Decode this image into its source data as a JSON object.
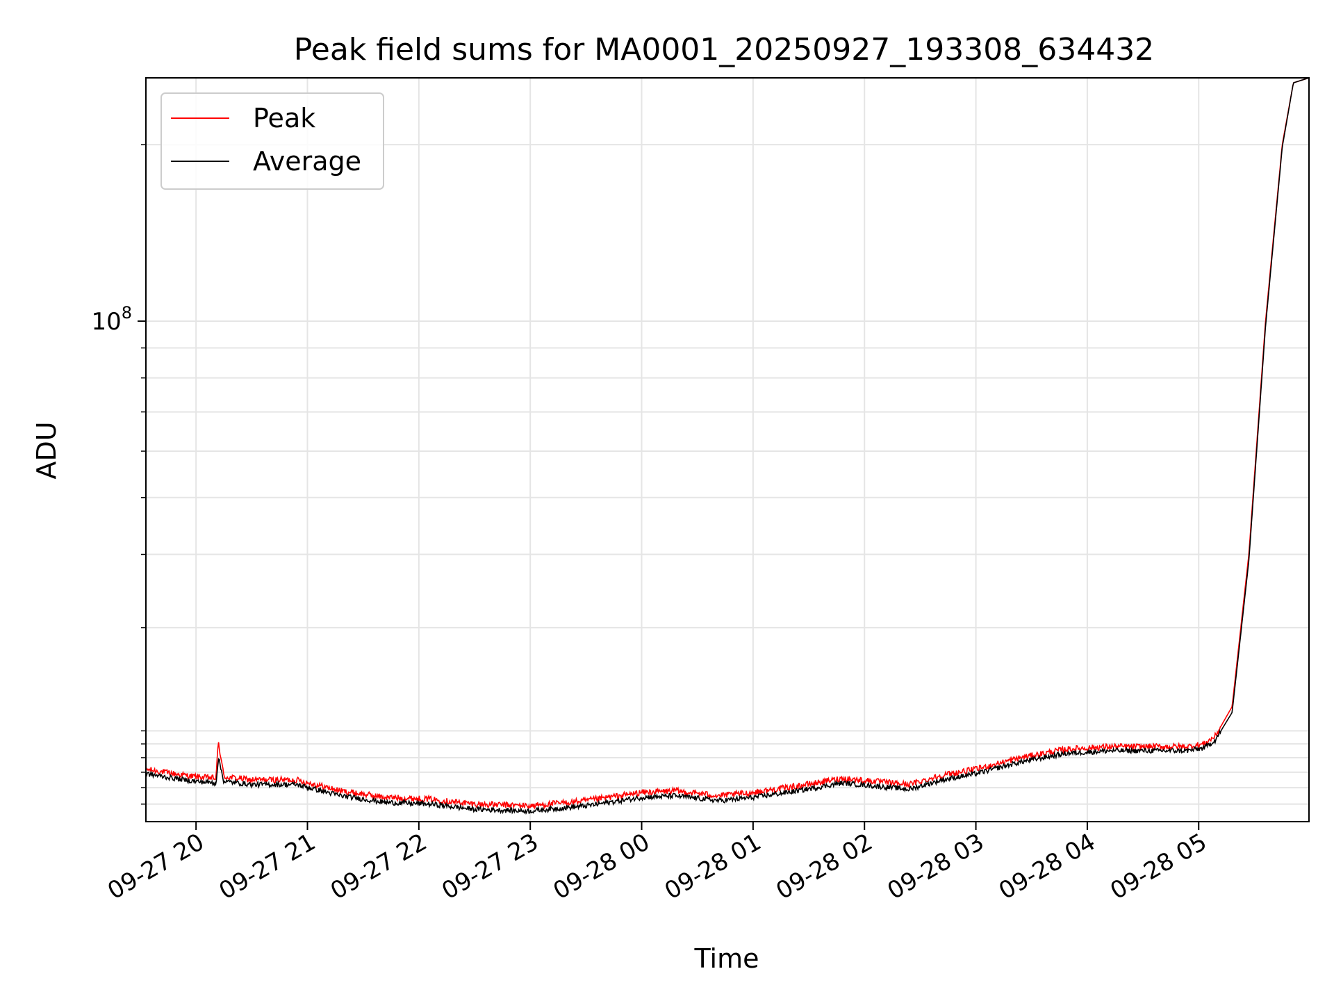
{
  "chart_data": {
    "type": "line",
    "title": "Peak field sums for MA0001_20250927_193308_634432",
    "xlabel": "Time",
    "ylabel": "ADU",
    "yscale": "log",
    "ylim": [
      14000000,
      260000000
    ],
    "ytick_major": {
      "value": 100000000,
      "base": "10",
      "exp": "8"
    },
    "ytick_minor": [
      15000000,
      16000000,
      17000000,
      18000000,
      19000000,
      20000000,
      30000000,
      40000000,
      50000000,
      60000000,
      70000000,
      80000000,
      90000000,
      200000000
    ],
    "xlim_hours": [
      -0.45,
      9.99
    ],
    "x_ticks": [
      {
        "h": 0,
        "label": "09-27 20"
      },
      {
        "h": 1,
        "label": "09-27 21"
      },
      {
        "h": 2,
        "label": "09-27 22"
      },
      {
        "h": 3,
        "label": "09-27 23"
      },
      {
        "h": 4,
        "label": "09-28 00"
      },
      {
        "h": 5,
        "label": "09-28 01"
      },
      {
        "h": 6,
        "label": "09-28 02"
      },
      {
        "h": 7,
        "label": "09-28 03"
      },
      {
        "h": 8,
        "label": "09-28 04"
      },
      {
        "h": 9,
        "label": "09-28 05"
      }
    ],
    "grid": true,
    "legend_position": "top-left",
    "series": [
      {
        "name": "Peak",
        "color": "#ff0000",
        "x_hours": [
          -0.45,
          -0.2,
          0.0,
          0.18,
          0.2,
          0.25,
          0.5,
          0.9,
          1.3,
          1.7,
          2.1,
          2.5,
          3.0,
          3.5,
          4.0,
          4.3,
          4.7,
          5.0,
          5.4,
          5.8,
          6.1,
          6.4,
          6.7,
          7.0,
          7.4,
          7.8,
          8.2,
          8.6,
          8.9,
          9.05,
          9.15,
          9.3,
          9.45,
          9.6,
          9.75,
          9.85,
          9.99
        ],
        "y": [
          17200000,
          16900000,
          16700000,
          16600000,
          19200000,
          16700000,
          16500000,
          16500000,
          15800000,
          15400000,
          15300000,
          15000000,
          14900000,
          15200000,
          15700000,
          15800000,
          15500000,
          15700000,
          16100000,
          16600000,
          16400000,
          16200000,
          16800000,
          17200000,
          18000000,
          18600000,
          18800000,
          18800000,
          18800000,
          19000000,
          19600000,
          22000000,
          40000000,
          100000000,
          200000000,
          255000000,
          260000000
        ]
      },
      {
        "name": "Average",
        "color": "#000000",
        "x_hours": [
          -0.45,
          -0.2,
          0.0,
          0.18,
          0.2,
          0.25,
          0.5,
          0.9,
          1.3,
          1.7,
          2.1,
          2.5,
          3.0,
          3.5,
          4.0,
          4.3,
          4.7,
          5.0,
          5.4,
          5.8,
          6.1,
          6.4,
          6.7,
          7.0,
          7.4,
          7.8,
          8.2,
          8.6,
          8.9,
          9.05,
          9.15,
          9.3,
          9.45,
          9.6,
          9.75,
          9.85,
          9.99
        ],
        "y": [
          16900000,
          16600000,
          16400000,
          16300000,
          18000000,
          16400000,
          16200000,
          16200000,
          15500000,
          15100000,
          15000000,
          14700000,
          14600000,
          14900000,
          15400000,
          15500000,
          15200000,
          15400000,
          15800000,
          16300000,
          16100000,
          15900000,
          16500000,
          16900000,
          17700000,
          18300000,
          18500000,
          18500000,
          18500000,
          18700000,
          19300000,
          21500000,
          39000000,
          98000000,
          198000000,
          255000000,
          260000000
        ]
      }
    ]
  }
}
